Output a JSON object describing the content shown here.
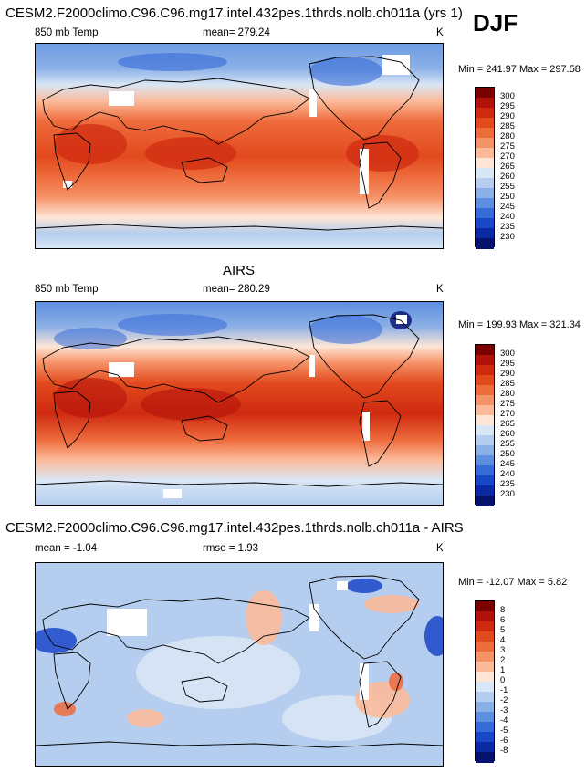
{
  "season": "DJF",
  "panels": [
    {
      "title": "CESM2.F2000climo.C96.C96.mg17.intel.432pes.1thrds.nolb.ch011a (yrs 1)",
      "left_text": "850 mb Temp",
      "center_text": "mean= 279.24",
      "units": "K",
      "minmax": "Min = 241.97 Max = 297.58",
      "colorbar": {
        "labels": [
          "300",
          "295",
          "290",
          "285",
          "280",
          "275",
          "270",
          "265",
          "260",
          "255",
          "250",
          "245",
          "240",
          "235",
          "230"
        ],
        "colors": [
          "#7a0000",
          "#b3110b",
          "#cf2a10",
          "#e24a1e",
          "#ee6b3c",
          "#f69268",
          "#fbbb9b",
          "#fde6d6",
          "#d9e6f5",
          "#b5cdee",
          "#8bb0e6",
          "#5e8ee0",
          "#376bd9",
          "#1a47c9",
          "#0b28a5",
          "#05126e"
        ]
      }
    },
    {
      "title": "AIRS",
      "left_text": "850 mb Temp",
      "center_text": "mean= 280.29",
      "units": "K",
      "minmax": "Min = 199.93 Max = 321.34",
      "colorbar": {
        "labels": [
          "300",
          "295",
          "290",
          "285",
          "280",
          "275",
          "270",
          "265",
          "260",
          "255",
          "250",
          "245",
          "240",
          "235",
          "230"
        ],
        "colors": [
          "#7a0000",
          "#b3110b",
          "#cf2a10",
          "#e24a1e",
          "#ee6b3c",
          "#f69268",
          "#fbbb9b",
          "#fde6d6",
          "#d9e6f5",
          "#b5cdee",
          "#8bb0e6",
          "#5e8ee0",
          "#376bd9",
          "#1a47c9",
          "#0b28a5",
          "#05126e"
        ]
      }
    },
    {
      "title": "CESM2.F2000climo.C96.C96.mg17.intel.432pes.1thrds.nolb.ch011a - AIRS",
      "left_text": "mean =  -1.04",
      "center_text": "rmse =   1.93",
      "units": "K",
      "minmax": "Min = -12.07 Max =   5.82",
      "colorbar": {
        "labels": [
          "8",
          "6",
          "5",
          "4",
          "3",
          "2",
          "1",
          "0",
          "-1",
          "-2",
          "-3",
          "-4",
          "-5",
          "-6",
          "-8"
        ],
        "colors": [
          "#7a0000",
          "#b3110b",
          "#cf2a10",
          "#e24a1e",
          "#ee6b3c",
          "#f69268",
          "#fbbb9b",
          "#fde6d6",
          "#d9e6f5",
          "#b5cdee",
          "#8bb0e6",
          "#5e8ee0",
          "#376bd9",
          "#1a47c9",
          "#0b28a5",
          "#05126e"
        ]
      }
    }
  ]
}
